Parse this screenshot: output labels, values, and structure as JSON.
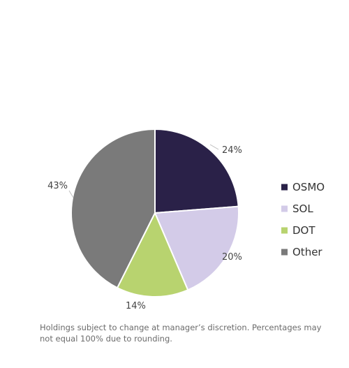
{
  "chart_data": {
    "type": "pie",
    "title": "",
    "slices": [
      {
        "name": "OSMO",
        "value": 24,
        "label": "24%",
        "color": "#2a2148"
      },
      {
        "name": "SOL",
        "value": 20,
        "label": "20%",
        "color": "#d3cbe8"
      },
      {
        "name": "DOT",
        "value": 14,
        "label": "14%",
        "color": "#b8d36f"
      },
      {
        "name": "Other",
        "value": 43,
        "label": "43%",
        "color": "#7a7a7a"
      }
    ],
    "start_angle_deg": 0,
    "direction": "clockwise",
    "legend_position": "right"
  },
  "footnote": "Holdings subject to change at manager’s discretion.  Percentages may not equal 100% due to rounding."
}
